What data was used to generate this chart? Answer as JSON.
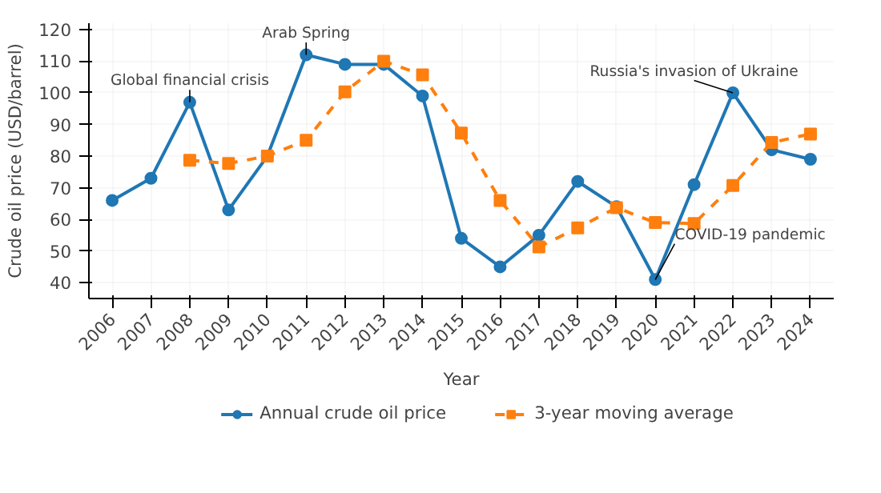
{
  "chart_data": {
    "type": "line",
    "xlabel": "Year",
    "ylabel": "Crude oil price (USD/barrel)",
    "x": [
      2006,
      2007,
      2008,
      2009,
      2010,
      2011,
      2012,
      2013,
      2014,
      2015,
      2016,
      2017,
      2018,
      2019,
      2020,
      2021,
      2022,
      2023,
      2024
    ],
    "series": [
      {
        "name": "Annual crude oil price",
        "color": "#1f77b4",
        "marker": "circle",
        "line_style": "solid",
        "values": [
          66,
          73,
          97,
          63,
          80,
          112,
          109,
          109,
          99,
          54,
          45,
          55,
          72,
          64,
          41,
          71,
          100,
          82,
          79
        ]
      },
      {
        "name": "3-year moving average",
        "color": "#ff7f0e",
        "marker": "square",
        "line_style": "dashed",
        "values": [
          null,
          null,
          78.7,
          77.7,
          80,
          85,
          100.3,
          110,
          105.7,
          87.3,
          66,
          51.3,
          57.3,
          63.7,
          59,
          58.7,
          70.7,
          84.3,
          87
        ]
      }
    ],
    "xlim": [
      2005.4,
      2024.6
    ],
    "xticks": [
      2006,
      2007,
      2008,
      2009,
      2010,
      2011,
      2012,
      2013,
      2014,
      2015,
      2016,
      2017,
      2018,
      2019,
      2020,
      2021,
      2022,
      2023,
      2024
    ],
    "ylim": [
      35,
      122
    ],
    "yticks": [
      40,
      50,
      60,
      70,
      80,
      90,
      100,
      110,
      120
    ],
    "grid": true,
    "legend": "bottom",
    "annotations": [
      {
        "text": "Global financial crisis",
        "x": 2008,
        "y": 97
      },
      {
        "text": "Arab Spring",
        "x": 2011,
        "y": 112
      },
      {
        "text": "COVID-19 pandemic",
        "x": 2020,
        "y": 41
      },
      {
        "text": "Russia's invasion of Ukraine",
        "x": 2022,
        "y": 100
      }
    ]
  }
}
